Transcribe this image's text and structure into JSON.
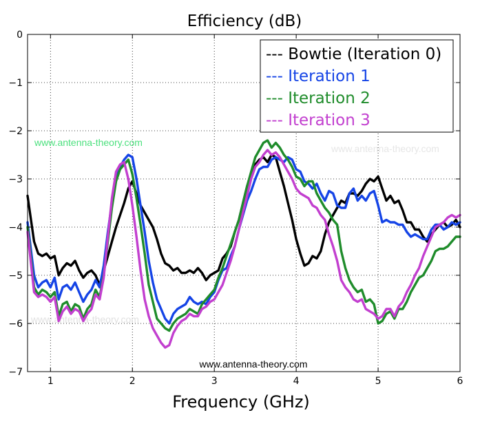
{
  "chart_data": {
    "type": "line",
    "title": "Efficiency (dB)",
    "xlabel": "Frequency (GHz)",
    "ylabel": "",
    "xlim": [
      0.72,
      6.0
    ],
    "ylim": [
      -7,
      0
    ],
    "xticks": [
      1,
      2,
      3,
      4,
      5,
      6
    ],
    "xtick_labels": [
      "1",
      "2",
      "3",
      "4",
      "5",
      "6"
    ],
    "yticks": [
      0,
      -1,
      -2,
      -3,
      -4,
      -5,
      -6,
      -7
    ],
    "ytick_labels": [
      "0",
      "−1",
      "−2",
      "−3",
      "−4",
      "−5",
      "−6",
      "−7"
    ],
    "grid": true,
    "legend_position": "top-right",
    "series": [
      {
        "name": "Bowtie (Iteration 0)",
        "legend_label": "--- Bowtie (Iteration 0)",
        "color": "#000000",
        "x": [
          0.72,
          0.8,
          0.85,
          0.9,
          0.95,
          1.0,
          1.05,
          1.1,
          1.15,
          1.2,
          1.25,
          1.3,
          1.35,
          1.4,
          1.45,
          1.5,
          1.55,
          1.6,
          1.65,
          1.7,
          1.75,
          1.8,
          1.85,
          1.9,
          1.95,
          2.0,
          2.05,
          2.1,
          2.15,
          2.2,
          2.25,
          2.3,
          2.35,
          2.4,
          2.45,
          2.5,
          2.55,
          2.6,
          2.65,
          2.7,
          2.75,
          2.8,
          2.85,
          2.9,
          2.95,
          3.0,
          3.05,
          3.1,
          3.15,
          3.2,
          3.25,
          3.3,
          3.35,
          3.4,
          3.45,
          3.5,
          3.55,
          3.6,
          3.65,
          3.7,
          3.75,
          3.8,
          3.85,
          3.9,
          3.95,
          4.0,
          4.05,
          4.1,
          4.15,
          4.2,
          4.25,
          4.3,
          4.35,
          4.4,
          4.45,
          4.5,
          4.55,
          4.6,
          4.65,
          4.7,
          4.75,
          4.8,
          4.85,
          4.9,
          4.95,
          5.0,
          5.05,
          5.1,
          5.15,
          5.2,
          5.25,
          5.3,
          5.35,
          5.4,
          5.45,
          5.5,
          5.55,
          5.6,
          5.65,
          5.7,
          5.75,
          5.8,
          5.85,
          5.9,
          5.95,
          6.0
        ],
        "y": [
          -3.35,
          -4.3,
          -4.55,
          -4.6,
          -4.55,
          -4.65,
          -4.6,
          -5.0,
          -4.85,
          -4.75,
          -4.8,
          -4.7,
          -4.9,
          -5.05,
          -4.95,
          -4.9,
          -5.0,
          -5.2,
          -4.9,
          -4.6,
          -4.3,
          -4.0,
          -3.75,
          -3.5,
          -3.2,
          -3.05,
          -3.3,
          -3.55,
          -3.7,
          -3.85,
          -4.0,
          -4.25,
          -4.55,
          -4.75,
          -4.8,
          -4.9,
          -4.85,
          -4.95,
          -4.95,
          -4.9,
          -4.95,
          -4.85,
          -4.95,
          -5.1,
          -5.0,
          -4.95,
          -4.9,
          -4.65,
          -4.55,
          -4.4,
          -4.1,
          -3.85,
          -3.5,
          -3.15,
          -2.9,
          -2.7,
          -2.6,
          -2.55,
          -2.65,
          -2.5,
          -2.55,
          -2.85,
          -3.15,
          -3.5,
          -3.85,
          -4.25,
          -4.55,
          -4.8,
          -4.75,
          -4.6,
          -4.65,
          -4.5,
          -4.15,
          -3.9,
          -3.75,
          -3.6,
          -3.45,
          -3.5,
          -3.3,
          -3.3,
          -3.35,
          -3.25,
          -3.1,
          -3.0,
          -3.05,
          -2.95,
          -3.2,
          -3.45,
          -3.35,
          -3.5,
          -3.45,
          -3.65,
          -3.9,
          -3.9,
          -4.05,
          -4.05,
          -4.2,
          -4.3,
          -4.15,
          -4.05,
          -3.95,
          -3.9,
          -4.0,
          -3.95,
          -3.85,
          -4.0
        ]
      },
      {
        "name": "Iteration 1",
        "legend_label": "--- Iteration 1",
        "color": "#1544e6",
        "x": [
          0.72,
          0.8,
          0.85,
          0.9,
          0.95,
          1.0,
          1.05,
          1.1,
          1.15,
          1.2,
          1.25,
          1.3,
          1.35,
          1.4,
          1.45,
          1.5,
          1.55,
          1.6,
          1.65,
          1.7,
          1.75,
          1.8,
          1.85,
          1.9,
          1.95,
          2.0,
          2.05,
          2.1,
          2.15,
          2.2,
          2.25,
          2.3,
          2.35,
          2.4,
          2.45,
          2.5,
          2.55,
          2.6,
          2.65,
          2.7,
          2.75,
          2.8,
          2.85,
          2.9,
          2.95,
          3.0,
          3.05,
          3.1,
          3.15,
          3.2,
          3.25,
          3.3,
          3.35,
          3.4,
          3.45,
          3.5,
          3.55,
          3.6,
          3.65,
          3.7,
          3.75,
          3.8,
          3.85,
          3.9,
          3.95,
          4.0,
          4.05,
          4.1,
          4.15,
          4.2,
          4.25,
          4.3,
          4.35,
          4.4,
          4.45,
          4.5,
          4.55,
          4.6,
          4.65,
          4.7,
          4.75,
          4.8,
          4.85,
          4.9,
          4.95,
          5.0,
          5.05,
          5.1,
          5.15,
          5.2,
          5.25,
          5.3,
          5.35,
          5.4,
          5.45,
          5.5,
          5.55,
          5.6,
          5.65,
          5.7,
          5.75,
          5.8,
          5.85,
          5.9,
          5.95,
          6.0
        ],
        "y": [
          -3.9,
          -5.0,
          -5.25,
          -5.15,
          -5.1,
          -5.25,
          -5.05,
          -5.5,
          -5.25,
          -5.2,
          -5.3,
          -5.15,
          -5.35,
          -5.55,
          -5.4,
          -5.3,
          -5.1,
          -5.25,
          -4.8,
          -4.1,
          -3.5,
          -3.0,
          -2.75,
          -2.6,
          -2.5,
          -2.55,
          -3.0,
          -3.55,
          -4.1,
          -4.7,
          -5.15,
          -5.5,
          -5.7,
          -5.9,
          -6.0,
          -5.8,
          -5.7,
          -5.65,
          -5.6,
          -5.45,
          -5.55,
          -5.6,
          -5.55,
          -5.6,
          -5.45,
          -5.35,
          -5.1,
          -4.9,
          -4.85,
          -4.6,
          -4.4,
          -4.05,
          -3.75,
          -3.45,
          -3.25,
          -3.0,
          -2.8,
          -2.75,
          -2.75,
          -2.6,
          -2.55,
          -2.6,
          -2.65,
          -2.55,
          -2.6,
          -2.8,
          -2.85,
          -3.05,
          -3.1,
          -3.2,
          -3.1,
          -3.3,
          -3.45,
          -3.25,
          -3.3,
          -3.55,
          -3.6,
          -3.6,
          -3.3,
          -3.2,
          -3.45,
          -3.35,
          -3.45,
          -3.3,
          -3.25,
          -3.55,
          -3.9,
          -3.85,
          -3.9,
          -3.9,
          -3.95,
          -3.95,
          -4.1,
          -4.2,
          -4.15,
          -4.2,
          -4.25,
          -4.25,
          -4.05,
          -3.95,
          -3.95,
          -4.05,
          -4.0,
          -3.9,
          -3.95,
          -3.9
        ]
      },
      {
        "name": "Iteration 2",
        "legend_label": "--- Iteration 2",
        "color": "#1f8c2b",
        "x": [
          0.72,
          0.8,
          0.85,
          0.9,
          0.95,
          1.0,
          1.05,
          1.1,
          1.15,
          1.2,
          1.25,
          1.3,
          1.35,
          1.4,
          1.45,
          1.5,
          1.55,
          1.6,
          1.65,
          1.7,
          1.75,
          1.8,
          1.85,
          1.9,
          1.95,
          2.0,
          2.05,
          2.1,
          2.15,
          2.2,
          2.25,
          2.3,
          2.35,
          2.4,
          2.45,
          2.5,
          2.55,
          2.6,
          2.65,
          2.7,
          2.75,
          2.8,
          2.85,
          2.9,
          2.95,
          3.0,
          3.05,
          3.1,
          3.15,
          3.2,
          3.25,
          3.3,
          3.35,
          3.4,
          3.45,
          3.5,
          3.55,
          3.6,
          3.65,
          3.7,
          3.75,
          3.8,
          3.85,
          3.9,
          3.95,
          4.0,
          4.05,
          4.1,
          4.15,
          4.2,
          4.25,
          4.3,
          4.35,
          4.4,
          4.45,
          4.5,
          4.55,
          4.6,
          4.65,
          4.7,
          4.75,
          4.8,
          4.85,
          4.9,
          4.95,
          5.0,
          5.05,
          5.1,
          5.15,
          5.2,
          5.25,
          5.3,
          5.35,
          5.4,
          5.45,
          5.5,
          5.55,
          5.6,
          5.65,
          5.7,
          5.75,
          5.8,
          5.85,
          5.9,
          5.95,
          6.0
        ],
        "y": [
          -4.0,
          -5.25,
          -5.4,
          -5.3,
          -5.35,
          -5.45,
          -5.35,
          -5.85,
          -5.6,
          -5.55,
          -5.75,
          -5.6,
          -5.65,
          -5.9,
          -5.7,
          -5.6,
          -5.3,
          -5.45,
          -5.0,
          -4.3,
          -3.6,
          -3.05,
          -2.8,
          -2.7,
          -2.6,
          -2.9,
          -3.4,
          -3.95,
          -4.55,
          -5.2,
          -5.55,
          -5.9,
          -6.0,
          -6.1,
          -6.15,
          -6.0,
          -5.9,
          -5.85,
          -5.8,
          -5.7,
          -5.75,
          -5.8,
          -5.6,
          -5.5,
          -5.4,
          -5.3,
          -5.05,
          -4.85,
          -4.6,
          -4.35,
          -4.1,
          -3.85,
          -3.5,
          -3.15,
          -2.85,
          -2.55,
          -2.4,
          -2.25,
          -2.2,
          -2.35,
          -2.25,
          -2.35,
          -2.5,
          -2.6,
          -2.75,
          -2.95,
          -3.0,
          -3.15,
          -3.05,
          -3.05,
          -3.3,
          -3.45,
          -3.6,
          -3.7,
          -3.85,
          -3.95,
          -4.5,
          -4.85,
          -5.1,
          -5.25,
          -5.35,
          -5.3,
          -5.55,
          -5.5,
          -5.6,
          -6.0,
          -5.95,
          -5.8,
          -5.75,
          -5.9,
          -5.7,
          -5.7,
          -5.55,
          -5.35,
          -5.2,
          -5.05,
          -5.0,
          -4.85,
          -4.7,
          -4.5,
          -4.45,
          -4.45,
          -4.4,
          -4.3,
          -4.2,
          -4.2
        ]
      },
      {
        "name": "Iteration 3",
        "legend_label": "--- Iteration 3",
        "color": "#c23fcf",
        "x": [
          0.72,
          0.8,
          0.85,
          0.9,
          0.95,
          1.0,
          1.05,
          1.1,
          1.15,
          1.2,
          1.25,
          1.3,
          1.35,
          1.4,
          1.45,
          1.5,
          1.55,
          1.6,
          1.65,
          1.7,
          1.75,
          1.8,
          1.85,
          1.9,
          1.95,
          2.0,
          2.05,
          2.1,
          2.15,
          2.2,
          2.25,
          2.3,
          2.35,
          2.4,
          2.45,
          2.5,
          2.55,
          2.6,
          2.65,
          2.7,
          2.75,
          2.8,
          2.85,
          2.9,
          2.95,
          3.0,
          3.05,
          3.1,
          3.15,
          3.2,
          3.25,
          3.3,
          3.35,
          3.4,
          3.45,
          3.5,
          3.55,
          3.6,
          3.65,
          3.7,
          3.75,
          3.8,
          3.85,
          3.9,
          3.95,
          4.0,
          4.05,
          4.1,
          4.15,
          4.2,
          4.25,
          4.3,
          4.35,
          4.4,
          4.45,
          4.5,
          4.55,
          4.6,
          4.65,
          4.7,
          4.75,
          4.8,
          4.85,
          4.9,
          4.95,
          5.0,
          5.05,
          5.1,
          5.15,
          5.2,
          5.25,
          5.3,
          5.35,
          5.4,
          5.45,
          5.5,
          5.55,
          5.6,
          5.65,
          5.7,
          5.75,
          5.8,
          5.85,
          5.9,
          5.95,
          6.0
        ],
        "y": [
          -4.1,
          -5.35,
          -5.45,
          -5.4,
          -5.45,
          -5.55,
          -5.45,
          -5.95,
          -5.75,
          -5.65,
          -5.8,
          -5.7,
          -5.75,
          -5.95,
          -5.8,
          -5.7,
          -5.4,
          -5.5,
          -5.05,
          -4.2,
          -3.4,
          -2.85,
          -2.7,
          -2.65,
          -3.0,
          -3.55,
          -4.2,
          -4.9,
          -5.5,
          -5.85,
          -6.1,
          -6.25,
          -6.4,
          -6.5,
          -6.45,
          -6.2,
          -6.05,
          -5.95,
          -5.9,
          -5.8,
          -5.85,
          -5.85,
          -5.7,
          -5.65,
          -5.55,
          -5.5,
          -5.35,
          -5.2,
          -4.95,
          -4.7,
          -4.4,
          -4.05,
          -3.7,
          -3.35,
          -3.0,
          -2.75,
          -2.65,
          -2.5,
          -2.4,
          -2.5,
          -2.45,
          -2.55,
          -2.7,
          -2.85,
          -3.0,
          -3.2,
          -3.3,
          -3.35,
          -3.4,
          -3.55,
          -3.6,
          -3.75,
          -3.85,
          -4.15,
          -4.4,
          -4.7,
          -5.1,
          -5.25,
          -5.35,
          -5.5,
          -5.55,
          -5.5,
          -5.7,
          -5.75,
          -5.8,
          -5.9,
          -5.85,
          -5.7,
          -5.7,
          -5.85,
          -5.65,
          -5.55,
          -5.35,
          -5.2,
          -5.0,
          -4.85,
          -4.6,
          -4.4,
          -4.2,
          -4.0,
          -3.95,
          -3.9,
          -3.8,
          -3.75,
          -3.8,
          -3.75
        ]
      }
    ],
    "watermarks": [
      {
        "text": "www.antenna-theory.com",
        "color": "#4ce07e"
      },
      {
        "text": "www.antenna-theory.com",
        "color": "#e6e6e6"
      },
      {
        "text": "www.antenna-theory.com",
        "color": "#e0e0e0"
      },
      {
        "text": "www.antenna-theory.com",
        "color": "#000000"
      }
    ]
  }
}
